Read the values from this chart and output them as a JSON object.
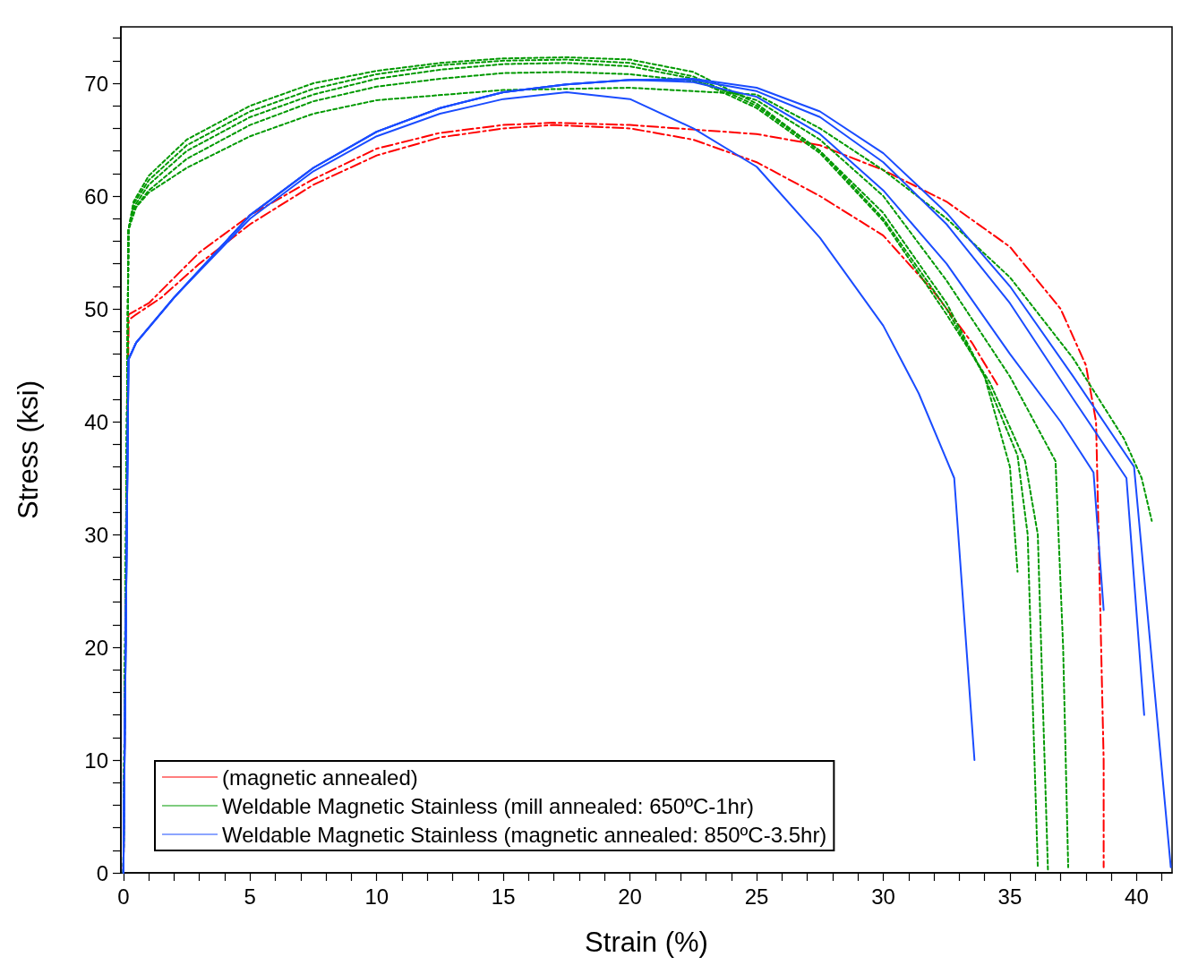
{
  "chart_data": {
    "type": "line",
    "xlabel": "Strain (%)",
    "ylabel": "Stress (ksi)",
    "xlim": [
      -0.1,
      41.4
    ],
    "ylim": [
      0,
      75
    ],
    "xticks": [
      0,
      {
        "value": 1,
        "label": null
      },
      {
        "value": 2,
        "label": null
      },
      {
        "value": 3,
        "label": null
      },
      {
        "value": 4,
        "label": null
      },
      5,
      {
        "value": 6,
        "label": null
      },
      {
        "value": 7,
        "label": null
      },
      {
        "value": 8,
        "label": null
      },
      {
        "value": 9,
        "label": null
      },
      10,
      {
        "value": 11,
        "label": null
      },
      {
        "value": 12,
        "label": null
      },
      {
        "value": 13,
        "label": null
      },
      {
        "value": 14,
        "label": null
      },
      15,
      {
        "value": 16,
        "label": null
      },
      {
        "value": 17,
        "label": null
      },
      {
        "value": 18,
        "label": null
      },
      {
        "value": 19,
        "label": null
      },
      20,
      {
        "value": 21,
        "label": null
      },
      {
        "value": 22,
        "label": null
      },
      {
        "value": 23,
        "label": null
      },
      {
        "value": 24,
        "label": null
      },
      25,
      {
        "value": 26,
        "label": null
      },
      {
        "value": 27,
        "label": null
      },
      {
        "value": 28,
        "label": null
      },
      {
        "value": 29,
        "label": null
      },
      30,
      {
        "value": 31,
        "label": null
      },
      {
        "value": 32,
        "label": null
      },
      {
        "value": 33,
        "label": null
      },
      {
        "value": 34,
        "label": null
      },
      35,
      {
        "value": 36,
        "label": null
      },
      {
        "value": 37,
        "label": null
      },
      {
        "value": 38,
        "label": null
      },
      {
        "value": 39,
        "label": null
      },
      40,
      {
        "value": 41,
        "label": null
      }
    ],
    "yticks": [
      0,
      {
        "value": 2,
        "label": null
      },
      {
        "value": 4,
        "label": null
      },
      {
        "value": 6,
        "label": null
      },
      {
        "value": 8,
        "label": null
      },
      10,
      {
        "value": 12,
        "label": null
      },
      {
        "value": 14,
        "label": null
      },
      {
        "value": 16,
        "label": null
      },
      {
        "value": 18,
        "label": null
      },
      20,
      {
        "value": 22,
        "label": null
      },
      {
        "value": 24,
        "label": null
      },
      {
        "value": 26,
        "label": null
      },
      {
        "value": 28,
        "label": null
      },
      30,
      {
        "value": 32,
        "label": null
      },
      {
        "value": 34,
        "label": null
      },
      {
        "value": 36,
        "label": null
      },
      {
        "value": 38,
        "label": null
      },
      40,
      {
        "value": 42,
        "label": null
      },
      {
        "value": 44,
        "label": null
      },
      {
        "value": 46,
        "label": null
      },
      {
        "value": 48,
        "label": null
      },
      50,
      {
        "value": 52,
        "label": null
      },
      {
        "value": 54,
        "label": null
      },
      {
        "value": 56,
        "label": null
      },
      {
        "value": 58,
        "label": null
      },
      60,
      {
        "value": 62,
        "label": null
      },
      {
        "value": 64,
        "label": null
      },
      {
        "value": 66,
        "label": null
      },
      {
        "value": 68,
        "label": null
      },
      70,
      {
        "value": 72,
        "label": null
      },
      {
        "value": 74,
        "label": null
      }
    ],
    "legend": "bottom left",
    "series": [
      {
        "name": "(magnetic annealed)",
        "color": "#ff0000",
        "line_style": "dashed",
        "x": [
          0,
          0.2,
          1,
          3,
          5,
          7.5,
          10,
          12.5,
          15,
          17,
          20,
          25,
          27.5,
          30,
          32.5,
          35,
          37,
          38,
          38.4,
          38.5,
          38.6,
          38.7,
          38.7
        ],
        "values": [
          0,
          49.5,
          50.5,
          55,
          58.3,
          61.5,
          64.2,
          65.6,
          66.3,
          66.5,
          66.3,
          65.5,
          64.5,
          62.3,
          59.5,
          55.5,
          50,
          45,
          40,
          30,
          20,
          10,
          0.5
        ]
      },
      {
        "color": "#ff0000",
        "line_style": "dashed",
        "x": [
          0,
          0.2,
          0.5,
          1.5,
          3,
          5,
          7.5,
          10,
          12.5,
          15,
          17,
          20,
          22.5,
          25,
          27.5,
          30,
          32,
          33.5,
          34.5
        ],
        "values": [
          0,
          49,
          49.5,
          51,
          54,
          57.5,
          61,
          63.6,
          65.2,
          66,
          66.3,
          66,
          65,
          63,
          60,
          56.5,
          51.5,
          47,
          43.3
        ]
      },
      {
        "name": "Weldable Magnetic Stainless (mill annealed: 650ºC-1hr)",
        "color": "#009900",
        "line_style": "dotted",
        "x": [
          0,
          0.2,
          0.4,
          1,
          2.5,
          5,
          7.5,
          10,
          12.5,
          15,
          17.5,
          20,
          22.5,
          25,
          27.5,
          30,
          32.5,
          34,
          35,
          35.3
        ],
        "values": [
          0,
          57,
          59.5,
          61.8,
          65,
          68,
          70,
          71.1,
          71.8,
          72.2,
          72.3,
          72.1,
          71,
          68.2,
          64,
          58.5,
          50.5,
          44,
          36,
          26.7
        ]
      },
      {
        "color": "#009900",
        "line_style": "dotted",
        "x": [
          0,
          0.2,
          0.4,
          1,
          2.5,
          5,
          7.5,
          10,
          12.5,
          15,
          17.5,
          20,
          22.5,
          25,
          27.5,
          30,
          32.5,
          34,
          35.3,
          35.7,
          35.9,
          36.1
        ],
        "values": [
          0,
          57,
          59.3,
          61.4,
          64.5,
          67.5,
          69.5,
          70.8,
          71.6,
          72,
          72.1,
          71.8,
          70.6,
          68,
          64,
          58,
          50,
          44,
          37,
          30,
          15,
          0.5
        ]
      },
      {
        "color": "#009900",
        "line_style": "dotted",
        "x": [
          0,
          0.2,
          0.4,
          1,
          2.5,
          5,
          7.5,
          10,
          12.5,
          15,
          17.5,
          20,
          22.5,
          25,
          27.5,
          30,
          32.5,
          34.2,
          35.6,
          36.1,
          36.3,
          36.5
        ],
        "values": [
          0,
          57,
          59,
          61,
          64,
          67,
          69,
          70.4,
          71.2,
          71.7,
          71.8,
          71.5,
          70.4,
          67.8,
          63.8,
          57.8,
          49.5,
          43.5,
          36.5,
          30,
          15,
          0.3
        ]
      },
      {
        "color": "#009900",
        "line_style": "dotted",
        "x": [
          0,
          0.2,
          0.4,
          1,
          2.5,
          5,
          7.5,
          10,
          12.5,
          15,
          17.5,
          20,
          22.5,
          25,
          27.5,
          30,
          32.5,
          35,
          36.8,
          37.1,
          37.3
        ],
        "values": [
          0,
          57,
          58.8,
          60.5,
          63.3,
          66.3,
          68.4,
          69.7,
          70.4,
          70.9,
          71,
          70.8,
          70.2,
          68.5,
          65,
          60,
          52.5,
          44,
          36.5,
          20,
          0.5
        ]
      },
      {
        "color": "#009900",
        "line_style": "dotted",
        "x": [
          0,
          0.2,
          0.5,
          1,
          2.5,
          5,
          7.5,
          10,
          15,
          20,
          25,
          27.5,
          30,
          32.5,
          35,
          37.5,
          39.5,
          40.2,
          40.6
        ],
        "values": [
          0,
          57,
          59,
          60.3,
          62.5,
          65.3,
          67.3,
          68.5,
          69.4,
          69.6,
          69,
          66,
          62.3,
          58,
          52.8,
          45.6,
          38.5,
          35,
          31.2
        ]
      },
      {
        "name": "Weldable Magnetic Stainless (magnetic annealed: 850ºC-3.5hr)",
        "color": "#1a4cff",
        "line_style": "solid",
        "x": [
          0,
          0.2,
          0.5,
          2,
          5,
          7.5,
          10,
          12.5,
          15,
          17.5,
          20,
          22.5,
          25,
          27.5,
          30,
          31.4,
          32.8,
          33.6
        ],
        "values": [
          0,
          45.5,
          47,
          51,
          58,
          62.2,
          65.3,
          67.3,
          68.6,
          69.2,
          68.6,
          66,
          62.6,
          56.3,
          48.5,
          42.5,
          35,
          10
        ]
      },
      {
        "color": "#1a4cff",
        "line_style": "solid",
        "x": [
          0,
          0.2,
          0.5,
          2,
          5,
          7.5,
          10,
          12.5,
          15,
          17.5,
          20,
          22.5,
          25,
          27.5,
          30,
          32.5,
          35,
          37,
          38.3,
          38.7
        ],
        "values": [
          0,
          45.5,
          47,
          51,
          58.3,
          62.5,
          65.7,
          67.8,
          69.2,
          69.9,
          70.3,
          70.1,
          68.8,
          65.5,
          60.5,
          54,
          46,
          40,
          35.5,
          23.3
        ]
      },
      {
        "color": "#1a4cff",
        "line_style": "solid",
        "x": [
          0,
          0.2,
          0.5,
          2,
          5,
          7.5,
          10,
          12.5,
          15,
          17.5,
          20,
          22.5,
          25,
          27.5,
          30,
          32.5,
          35,
          37.5,
          39.6,
          40.3
        ],
        "values": [
          0,
          45.5,
          47,
          51,
          58.3,
          62.5,
          65.7,
          67.8,
          69.2,
          69.9,
          70.3,
          70.3,
          69.3,
          67,
          63,
          57.5,
          50.5,
          42,
          35,
          14
        ]
      },
      {
        "color": "#1a4cff",
        "line_style": "solid",
        "x": [
          0,
          0.2,
          0.5,
          2,
          5,
          7.5,
          10,
          12.5,
          15,
          17.5,
          20,
          22.5,
          25,
          27.5,
          30,
          32.5,
          35,
          37.5,
          39.9,
          41.35
        ],
        "values": [
          0,
          45.5,
          47,
          51,
          58.3,
          62.5,
          65.7,
          67.8,
          69.2,
          69.9,
          70.3,
          70.4,
          69.6,
          67.5,
          63.8,
          58.5,
          52,
          44,
          36,
          0.5
        ]
      }
    ]
  }
}
